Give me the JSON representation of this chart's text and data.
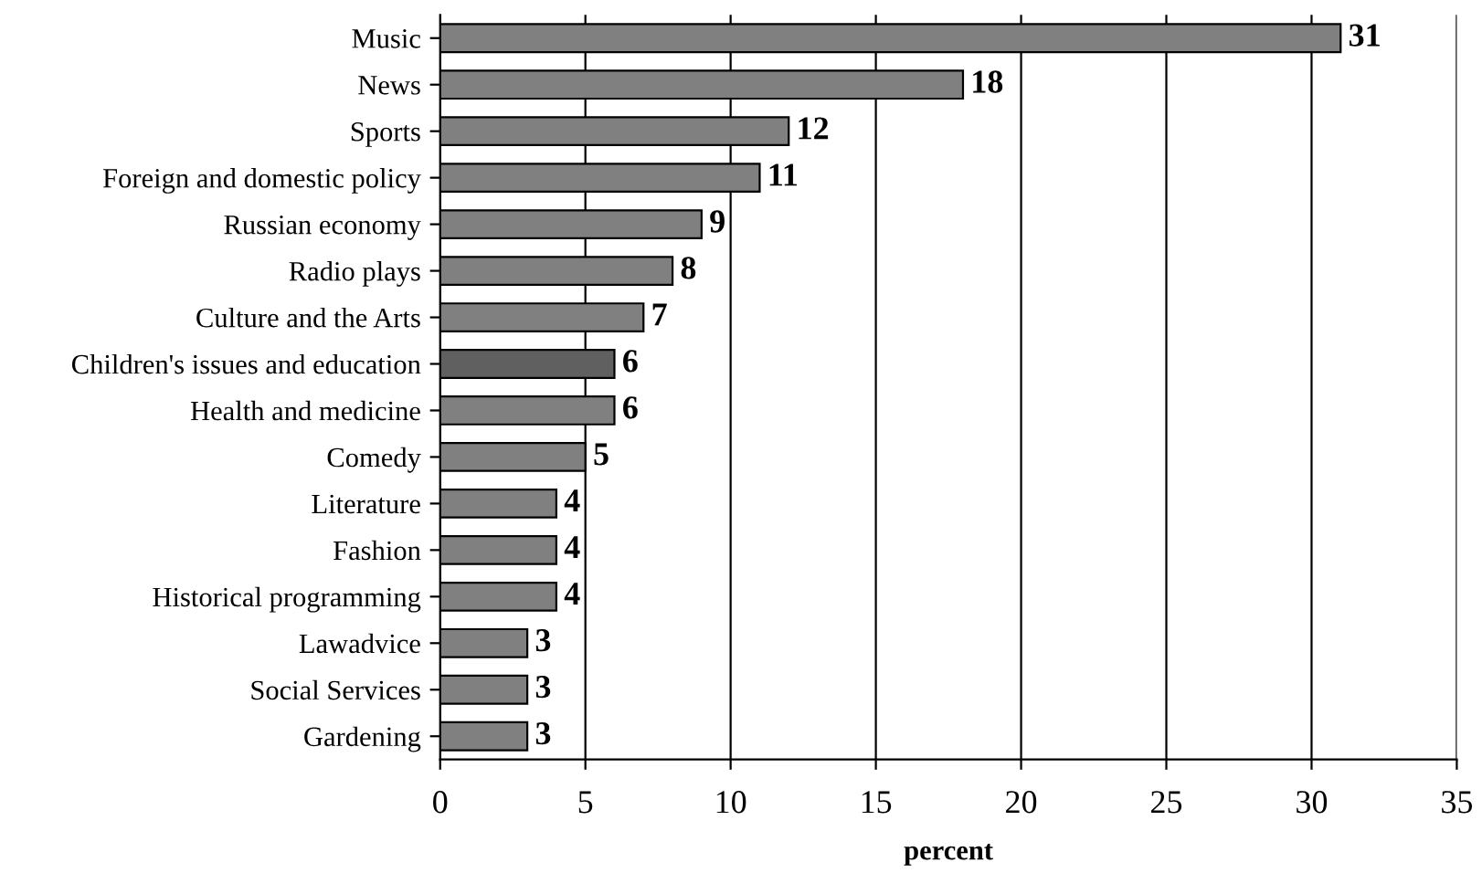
{
  "chart_data": {
    "type": "bar",
    "orientation": "horizontal",
    "xlabel": "percent",
    "categories": [
      "Music",
      "News",
      "Sports",
      "Foreign and domestic policy",
      "Russian economy",
      "Radio plays",
      "Culture and the Arts",
      "Children's issues and education",
      "Health and medicine",
      "Comedy",
      "Literature",
      "Fashion",
      "Historical programming",
      "Lawadvice",
      "Social Services",
      "Gardening"
    ],
    "values": [
      31,
      18,
      12,
      11,
      9,
      8,
      7,
      6,
      6,
      5,
      4,
      4,
      4,
      3,
      3,
      3
    ],
    "colors": [
      "#808080",
      "#808080",
      "#808080",
      "#808080",
      "#808080",
      "#808080",
      "#808080",
      "#606060",
      "#808080",
      "#808080",
      "#808080",
      "#808080",
      "#808080",
      "#808080",
      "#808080",
      "#808080"
    ],
    "xlim": [
      0,
      35
    ],
    "xticks": [
      0,
      5,
      10,
      15,
      20,
      25,
      30,
      35
    ],
    "grid": "x",
    "data_labels": true
  }
}
